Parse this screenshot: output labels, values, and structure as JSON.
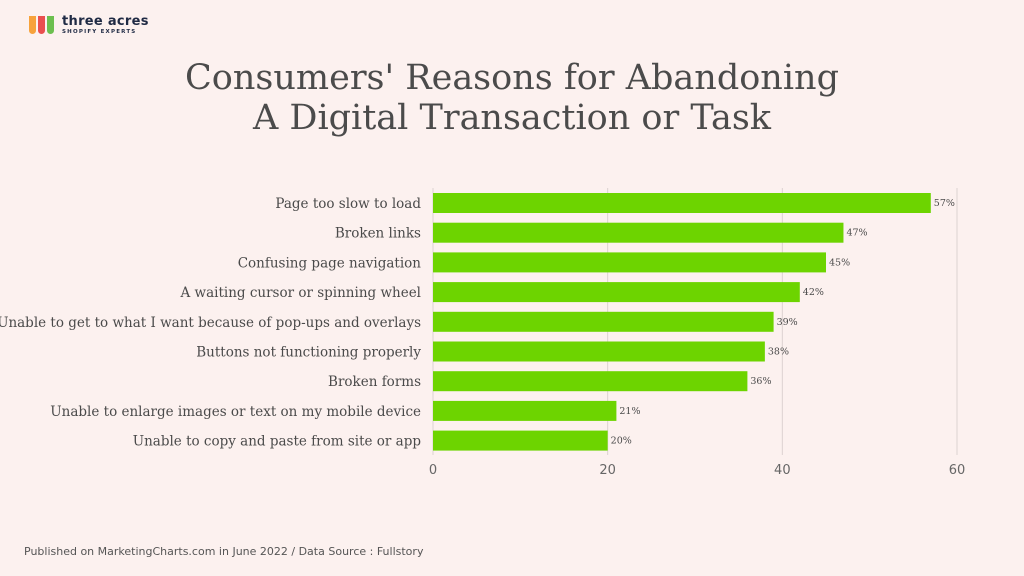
{
  "brand": {
    "name": "three acres",
    "subtitle": "SHOPIFY EXPERTS",
    "mark_colors": [
      "#f7a23b",
      "#e94f4f",
      "#6cbf4f"
    ]
  },
  "title_lines": [
    "Consumers' Reasons for Abandoning",
    "A Digital Transaction or Task"
  ],
  "footer": "Published on MarketingCharts.com in June 2022 / Data Source : Fullstory",
  "chart_data": {
    "type": "bar",
    "orientation": "horizontal",
    "categories": [
      "Page too slow to load",
      "Broken links",
      "Confusing page navigation",
      "A waiting cursor or spinning wheel",
      "Unable to get to what I want because of pop-ups and overlays",
      "Buttons not functioning properly",
      "Broken forms",
      "Unable to enlarge images or text on  my mobile device",
      "Unable to copy and paste from site or app"
    ],
    "values": [
      57,
      47,
      45,
      42,
      39,
      38,
      36,
      21,
      20
    ],
    "data_labels": [
      "57%",
      "47%",
      "45%",
      "42%",
      "39%",
      "38%",
      "36%",
      "21%",
      "20%"
    ],
    "xlim": [
      0,
      60
    ],
    "xticks": [
      0,
      20,
      40,
      60
    ],
    "grid": true,
    "bar_color": "#6dd400",
    "grid_color": "#dcd2d0"
  }
}
